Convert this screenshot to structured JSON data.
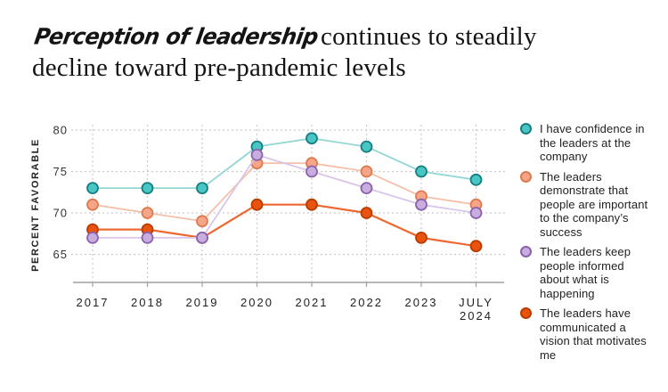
{
  "page": {
    "background": "#ffffff"
  },
  "header": {
    "title_script_part": "Perception of leadership",
    "title_serif_line1": "continues to steadily",
    "title_line2": "decline toward pre-pandemic levels"
  },
  "chart_data": {
    "type": "line",
    "title": "Perception of leadership continues to steadily decline toward pre-pandemic levels",
    "xlabel": "",
    "ylabel": "PERCENT FAVORABLE",
    "categories": [
      "2017",
      "2018",
      "2019",
      "2020",
      "2021",
      "2022",
      "2023",
      "JULY 2024"
    ],
    "yticks": [
      80,
      75,
      70,
      65
    ],
    "ylim": [
      62,
      81
    ],
    "grid": "dashed-both",
    "legend_position": "right",
    "colors": {
      "grid": "#cbcbcb",
      "axis": "#a0a0a0",
      "tick_text": "#333333",
      "xlabel_text": "#1f1f1f",
      "ylabel_text": "#222222"
    },
    "series": [
      {
        "name": "I have confidence in the leaders at the company",
        "values": [
          73,
          73,
          73,
          78,
          79,
          78,
          75,
          74
        ],
        "line_color": "#93d7d5",
        "marker_fill": "#49c5c4",
        "marker_stroke": "#157f81"
      },
      {
        "name": "The leaders demonstrate that people are important to the company’s success",
        "values": [
          71,
          70,
          69,
          76,
          76,
          75,
          72,
          71
        ],
        "line_color": "#f5c0a9",
        "marker_fill": "#f5a688",
        "marker_stroke": "#dd7a50"
      },
      {
        "name": "The leaders keep people informed about what is happening",
        "values": [
          67,
          67,
          67,
          77,
          75,
          73,
          71,
          70
        ],
        "line_color": "#d9c6ea",
        "marker_fill": "#c9adde",
        "marker_stroke": "#8a63ae"
      },
      {
        "name": "The leaders have communicated a vision that motivates me",
        "values": [
          68,
          68,
          67,
          71,
          71,
          70,
          67,
          66
        ],
        "line_color": "#ed6830",
        "marker_fill": "#ea520f",
        "marker_stroke": "#b93d00"
      }
    ]
  }
}
